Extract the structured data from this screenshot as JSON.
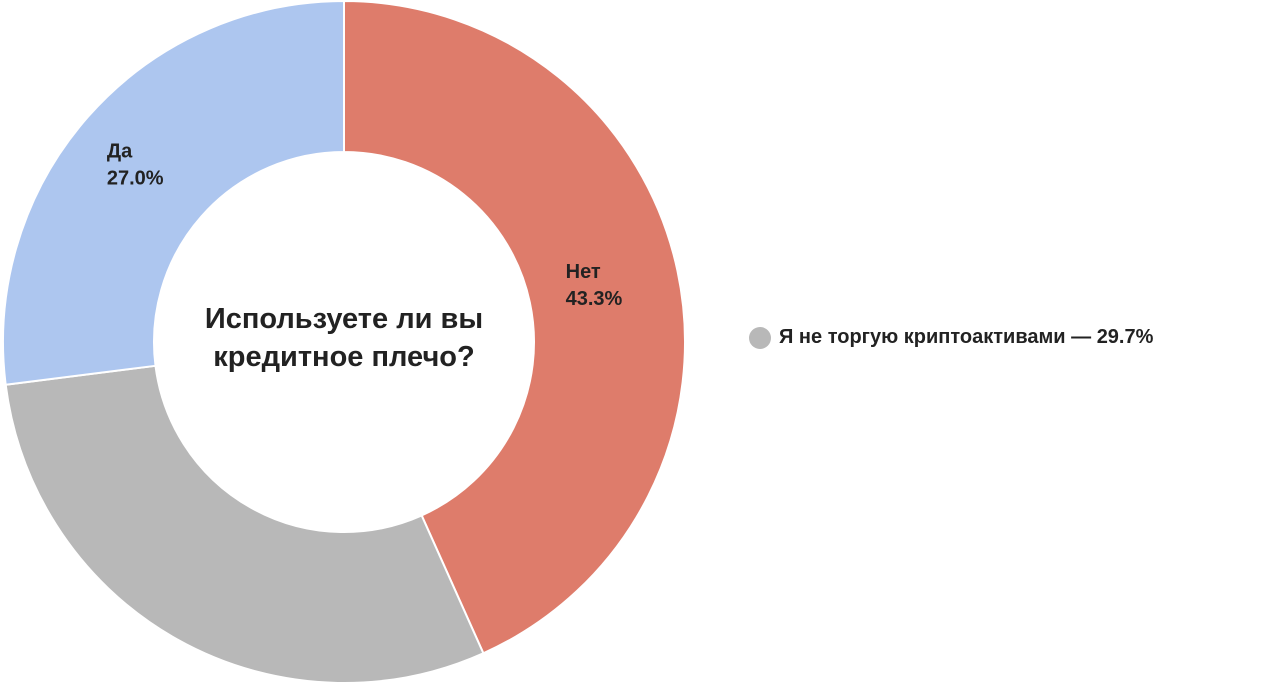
{
  "chart_data": {
    "type": "pie",
    "donut": true,
    "title": "Используете ли вы кредитное плечо?",
    "categories": [
      "Нет",
      "Я не торгую криптоактивами",
      "Да"
    ],
    "values": [
      43.3,
      29.7,
      27.0
    ],
    "value_labels": [
      "43.3%",
      "29.7%",
      "27.0%"
    ],
    "colors": [
      "#de7c6b",
      "#b8b8b8",
      "#adc6ef"
    ],
    "legend_items": [
      1
    ],
    "legend_separator": "—"
  }
}
